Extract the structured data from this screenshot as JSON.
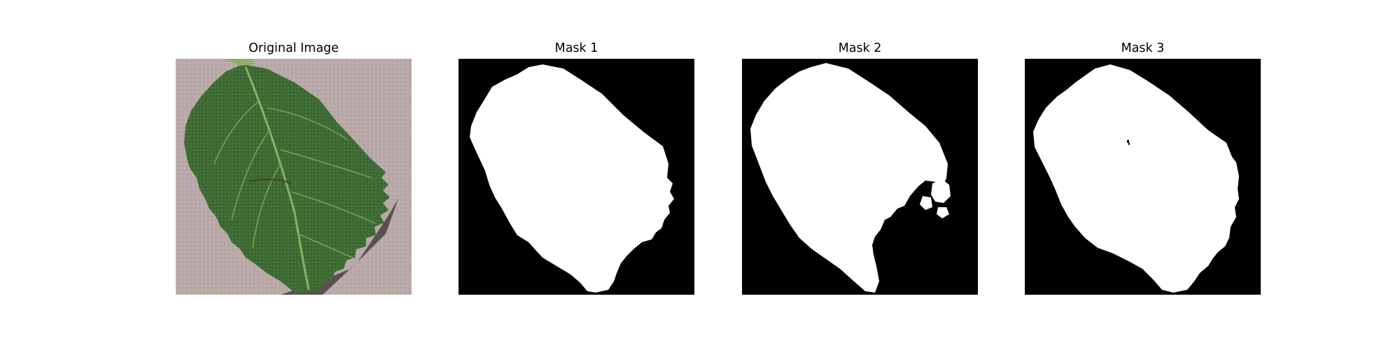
{
  "figure": {
    "panels": [
      {
        "title": "Original Image",
        "kind": "photo",
        "subject": "leaf-photo"
      },
      {
        "title": "Mask 1",
        "kind": "mask"
      },
      {
        "title": "Mask 2",
        "kind": "mask"
      },
      {
        "title": "Mask 3",
        "kind": "mask"
      }
    ]
  },
  "colors": {
    "mask_background": "#000000",
    "mask_foreground": "#ffffff",
    "photo_background": "#b9a9a8",
    "leaf_dark": "#2f5a2a",
    "leaf_mid": "#3f6f35",
    "leaf_vein": "#8fae6a",
    "leaf_shadow": "#3a3433"
  }
}
